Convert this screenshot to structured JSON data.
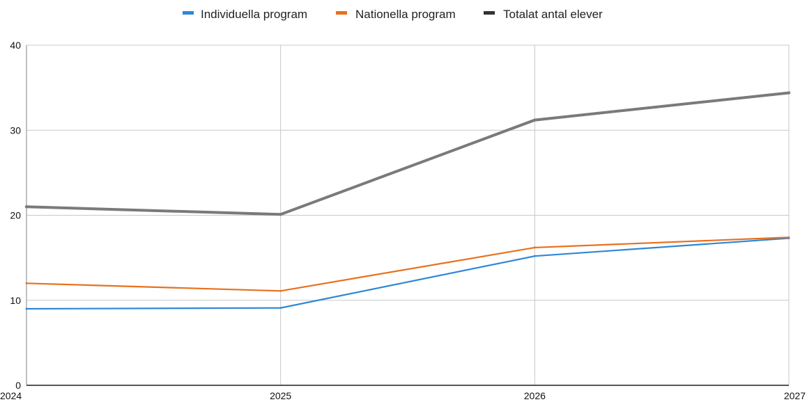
{
  "chart_data": {
    "type": "line",
    "x": [
      "2024",
      "2025",
      "2026",
      "2027"
    ],
    "ylim": [
      0,
      40
    ],
    "yticks": [
      "0",
      "10",
      "20",
      "30",
      "40"
    ],
    "grid": true,
    "legend_position": "top-center",
    "series": [
      {
        "name": "Individuella program",
        "color": "#2f87d6",
        "values": [
          9,
          9.1,
          15.2,
          17.3
        ]
      },
      {
        "name": "Nationella program",
        "color": "#e8701c",
        "values": [
          12,
          11.1,
          16.2,
          17.4
        ]
      },
      {
        "name": "Totalat antal elever",
        "color": "#7a7a7a",
        "values": [
          21,
          20.1,
          31.2,
          34.4
        ]
      }
    ]
  }
}
